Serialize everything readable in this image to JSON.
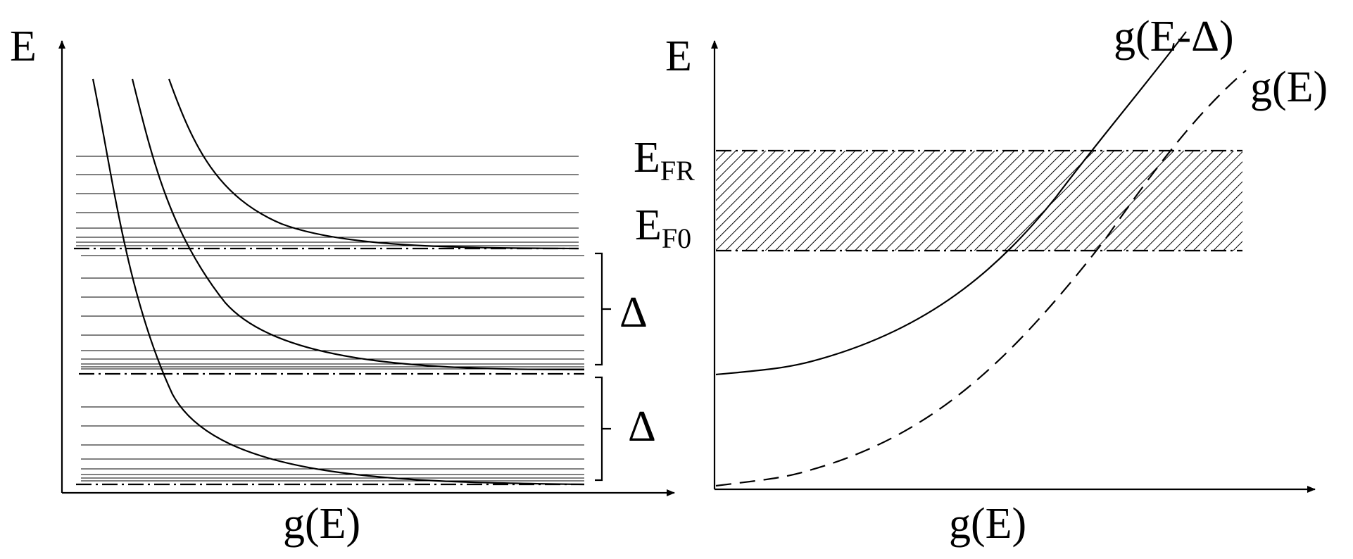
{
  "left_panel": {
    "y_axis_label": "E",
    "x_axis_label": "g(E)",
    "gap_labels": [
      "Δ",
      "Δ"
    ]
  },
  "right_panel": {
    "y_axis_label": "E",
    "x_axis_label": "g(E)",
    "level_fr": {
      "main": "E",
      "sub": "FR"
    },
    "level_f0": {
      "main": "E",
      "sub": "F0"
    },
    "curve_shifted_label": "g(E-Δ)",
    "curve_original_label": "g(E)"
  }
}
